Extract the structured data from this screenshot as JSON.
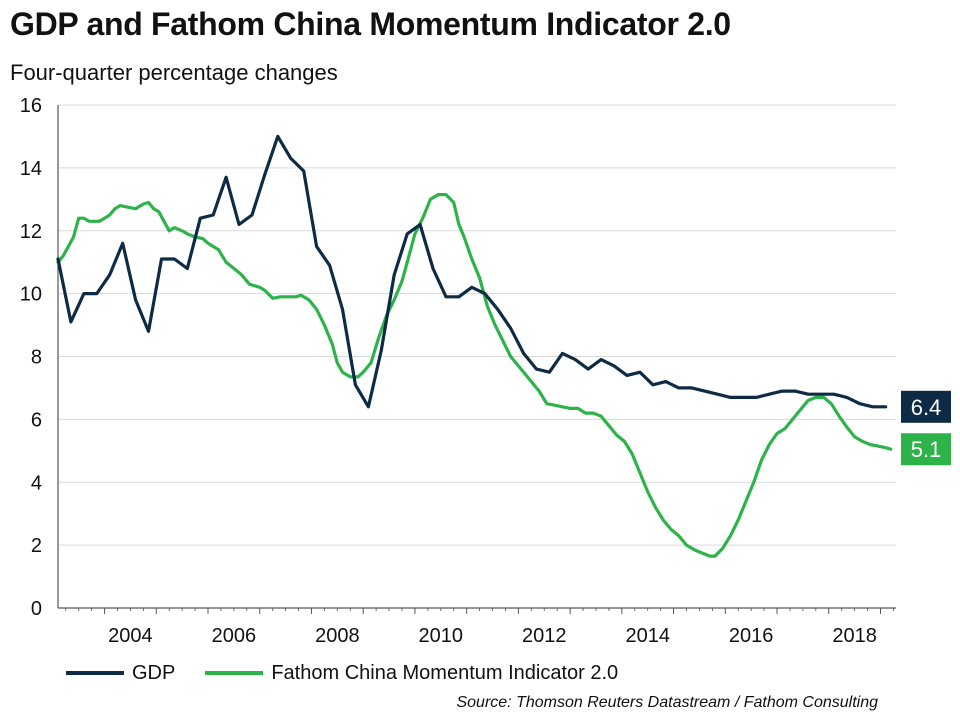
{
  "title": "GDP and Fathom China Momentum Indicator 2.0",
  "subtitle": "Four-quarter percentage changes",
  "source": "Source: Thomson Reuters Datastream / Fathom Consulting",
  "colors": {
    "gdp": "#0d2b45",
    "fathom": "#2db34a",
    "grid": "#d9d9d9",
    "axis": "#555555"
  },
  "chart_data": {
    "type": "line",
    "xlim": [
      2003.1,
      2019.3
    ],
    "ylim": [
      0,
      16
    ],
    "y_ticks": [
      0,
      2,
      4,
      6,
      8,
      10,
      12,
      14,
      16
    ],
    "x_tick_labels": [
      {
        "x": 2004,
        "label": "2004"
      },
      {
        "x": 2006,
        "label": "2006"
      },
      {
        "x": 2008,
        "label": "2008"
      },
      {
        "x": 2010,
        "label": "2010"
      },
      {
        "x": 2012,
        "label": "2012"
      },
      {
        "x": 2014,
        "label": "2014"
      },
      {
        "x": 2016,
        "label": "2016"
      },
      {
        "x": 2018,
        "label": "2018"
      }
    ],
    "grid": "horizontal",
    "legend": "bottom",
    "series": [
      {
        "name": "GDP",
        "key": "gdp",
        "end_label": "6.4",
        "points": [
          [
            2003.1,
            11.1
          ],
          [
            2003.35,
            9.1
          ],
          [
            2003.6,
            10.0
          ],
          [
            2003.85,
            10.0
          ],
          [
            2004.1,
            10.6
          ],
          [
            2004.35,
            11.6
          ],
          [
            2004.6,
            9.8
          ],
          [
            2004.85,
            8.8
          ],
          [
            2005.1,
            11.1
          ],
          [
            2005.35,
            11.1
          ],
          [
            2005.6,
            10.8
          ],
          [
            2005.85,
            12.4
          ],
          [
            2006.1,
            12.5
          ],
          [
            2006.35,
            13.7
          ],
          [
            2006.6,
            12.2
          ],
          [
            2006.85,
            12.5
          ],
          [
            2007.1,
            13.8
          ],
          [
            2007.35,
            15.0
          ],
          [
            2007.6,
            14.3
          ],
          [
            2007.85,
            13.9
          ],
          [
            2008.1,
            11.5
          ],
          [
            2008.35,
            10.9
          ],
          [
            2008.6,
            9.5
          ],
          [
            2008.85,
            7.1
          ],
          [
            2009.1,
            6.4
          ],
          [
            2009.35,
            8.2
          ],
          [
            2009.6,
            10.6
          ],
          [
            2009.85,
            11.9
          ],
          [
            2010.1,
            12.2
          ],
          [
            2010.35,
            10.8
          ],
          [
            2010.6,
            9.9
          ],
          [
            2010.85,
            9.9
          ],
          [
            2011.1,
            10.2
          ],
          [
            2011.35,
            10.0
          ],
          [
            2011.6,
            9.5
          ],
          [
            2011.85,
            8.9
          ],
          [
            2012.1,
            8.1
          ],
          [
            2012.35,
            7.6
          ],
          [
            2012.6,
            7.5
          ],
          [
            2012.85,
            8.1
          ],
          [
            2013.1,
            7.9
          ],
          [
            2013.35,
            7.6
          ],
          [
            2013.6,
            7.9
          ],
          [
            2013.85,
            7.7
          ],
          [
            2014.1,
            7.4
          ],
          [
            2014.35,
            7.5
          ],
          [
            2014.6,
            7.1
          ],
          [
            2014.85,
            7.2
          ],
          [
            2015.1,
            7.0
          ],
          [
            2015.35,
            7.0
          ],
          [
            2015.6,
            6.9
          ],
          [
            2015.85,
            6.8
          ],
          [
            2016.1,
            6.7
          ],
          [
            2016.35,
            6.7
          ],
          [
            2016.6,
            6.7
          ],
          [
            2016.85,
            6.8
          ],
          [
            2017.1,
            6.9
          ],
          [
            2017.35,
            6.9
          ],
          [
            2017.6,
            6.8
          ],
          [
            2017.85,
            6.8
          ],
          [
            2018.1,
            6.8
          ],
          [
            2018.35,
            6.7
          ],
          [
            2018.6,
            6.5
          ],
          [
            2018.85,
            6.4
          ],
          [
            2019.1,
            6.4
          ]
        ]
      },
      {
        "name": "Fathom China Momentum Indicator 2.0",
        "key": "fathom",
        "end_label": "5.1",
        "points": [
          [
            2003.1,
            11.0
          ],
          [
            2003.2,
            11.2
          ],
          [
            2003.3,
            11.5
          ],
          [
            2003.4,
            11.8
          ],
          [
            2003.5,
            12.4
          ],
          [
            2003.6,
            12.4
          ],
          [
            2003.7,
            12.3
          ],
          [
            2003.8,
            12.3
          ],
          [
            2003.9,
            12.3
          ],
          [
            2004.0,
            12.4
          ],
          [
            2004.1,
            12.5
          ],
          [
            2004.2,
            12.7
          ],
          [
            2004.3,
            12.8
          ],
          [
            2004.45,
            12.75
          ],
          [
            2004.6,
            12.7
          ],
          [
            2004.75,
            12.85
          ],
          [
            2004.85,
            12.9
          ],
          [
            2004.95,
            12.7
          ],
          [
            2005.05,
            12.6
          ],
          [
            2005.15,
            12.3
          ],
          [
            2005.25,
            12.0
          ],
          [
            2005.35,
            12.1
          ],
          [
            2005.5,
            12.0
          ],
          [
            2005.6,
            11.9
          ],
          [
            2005.75,
            11.8
          ],
          [
            2005.9,
            11.75
          ],
          [
            2006.0,
            11.6
          ],
          [
            2006.2,
            11.4
          ],
          [
            2006.35,
            11.0
          ],
          [
            2006.5,
            10.8
          ],
          [
            2006.65,
            10.6
          ],
          [
            2006.8,
            10.3
          ],
          [
            2007.0,
            10.2
          ],
          [
            2007.1,
            10.1
          ],
          [
            2007.25,
            9.85
          ],
          [
            2007.4,
            9.9
          ],
          [
            2007.55,
            9.9
          ],
          [
            2007.7,
            9.9
          ],
          [
            2007.8,
            9.95
          ],
          [
            2007.95,
            9.8
          ],
          [
            2008.1,
            9.5
          ],
          [
            2008.25,
            9.0
          ],
          [
            2008.4,
            8.4
          ],
          [
            2008.5,
            7.8
          ],
          [
            2008.6,
            7.5
          ],
          [
            2008.75,
            7.35
          ],
          [
            2008.9,
            7.35
          ],
          [
            2009.0,
            7.5
          ],
          [
            2009.15,
            7.8
          ],
          [
            2009.3,
            8.6
          ],
          [
            2009.45,
            9.3
          ],
          [
            2009.6,
            9.8
          ],
          [
            2009.75,
            10.4
          ],
          [
            2009.9,
            11.3
          ],
          [
            2010.0,
            11.9
          ],
          [
            2010.15,
            12.4
          ],
          [
            2010.3,
            13.0
          ],
          [
            2010.45,
            13.15
          ],
          [
            2010.6,
            13.15
          ],
          [
            2010.75,
            12.9
          ],
          [
            2010.85,
            12.2
          ],
          [
            2010.95,
            11.8
          ],
          [
            2011.1,
            11.1
          ],
          [
            2011.25,
            10.5
          ],
          [
            2011.4,
            9.6
          ],
          [
            2011.55,
            9.0
          ],
          [
            2011.7,
            8.5
          ],
          [
            2011.85,
            8.0
          ],
          [
            2012.0,
            7.7
          ],
          [
            2012.1,
            7.5
          ],
          [
            2012.25,
            7.2
          ],
          [
            2012.4,
            6.9
          ],
          [
            2012.55,
            6.5
          ],
          [
            2012.7,
            6.45
          ],
          [
            2012.85,
            6.4
          ],
          [
            2013.0,
            6.35
          ],
          [
            2013.15,
            6.35
          ],
          [
            2013.3,
            6.2
          ],
          [
            2013.45,
            6.2
          ],
          [
            2013.6,
            6.1
          ],
          [
            2013.75,
            5.8
          ],
          [
            2013.9,
            5.5
          ],
          [
            2014.05,
            5.3
          ],
          [
            2014.2,
            4.9
          ],
          [
            2014.35,
            4.3
          ],
          [
            2014.5,
            3.7
          ],
          [
            2014.65,
            3.2
          ],
          [
            2014.8,
            2.8
          ],
          [
            2014.95,
            2.5
          ],
          [
            2015.1,
            2.3
          ],
          [
            2015.25,
            2.0
          ],
          [
            2015.4,
            1.85
          ],
          [
            2015.55,
            1.75
          ],
          [
            2015.7,
            1.65
          ],
          [
            2015.8,
            1.65
          ],
          [
            2015.95,
            1.9
          ],
          [
            2016.1,
            2.3
          ],
          [
            2016.25,
            2.8
          ],
          [
            2016.4,
            3.4
          ],
          [
            2016.55,
            4.0
          ],
          [
            2016.7,
            4.7
          ],
          [
            2016.85,
            5.2
          ],
          [
            2017.0,
            5.55
          ],
          [
            2017.15,
            5.7
          ],
          [
            2017.3,
            6.0
          ],
          [
            2017.45,
            6.3
          ],
          [
            2017.6,
            6.6
          ],
          [
            2017.75,
            6.7
          ],
          [
            2017.9,
            6.7
          ],
          [
            2018.05,
            6.5
          ],
          [
            2018.2,
            6.1
          ],
          [
            2018.35,
            5.75
          ],
          [
            2018.5,
            5.45
          ],
          [
            2018.65,
            5.3
          ],
          [
            2018.8,
            5.2
          ],
          [
            2018.95,
            5.15
          ],
          [
            2019.1,
            5.1
          ],
          [
            2019.2,
            5.05
          ]
        ]
      }
    ]
  }
}
